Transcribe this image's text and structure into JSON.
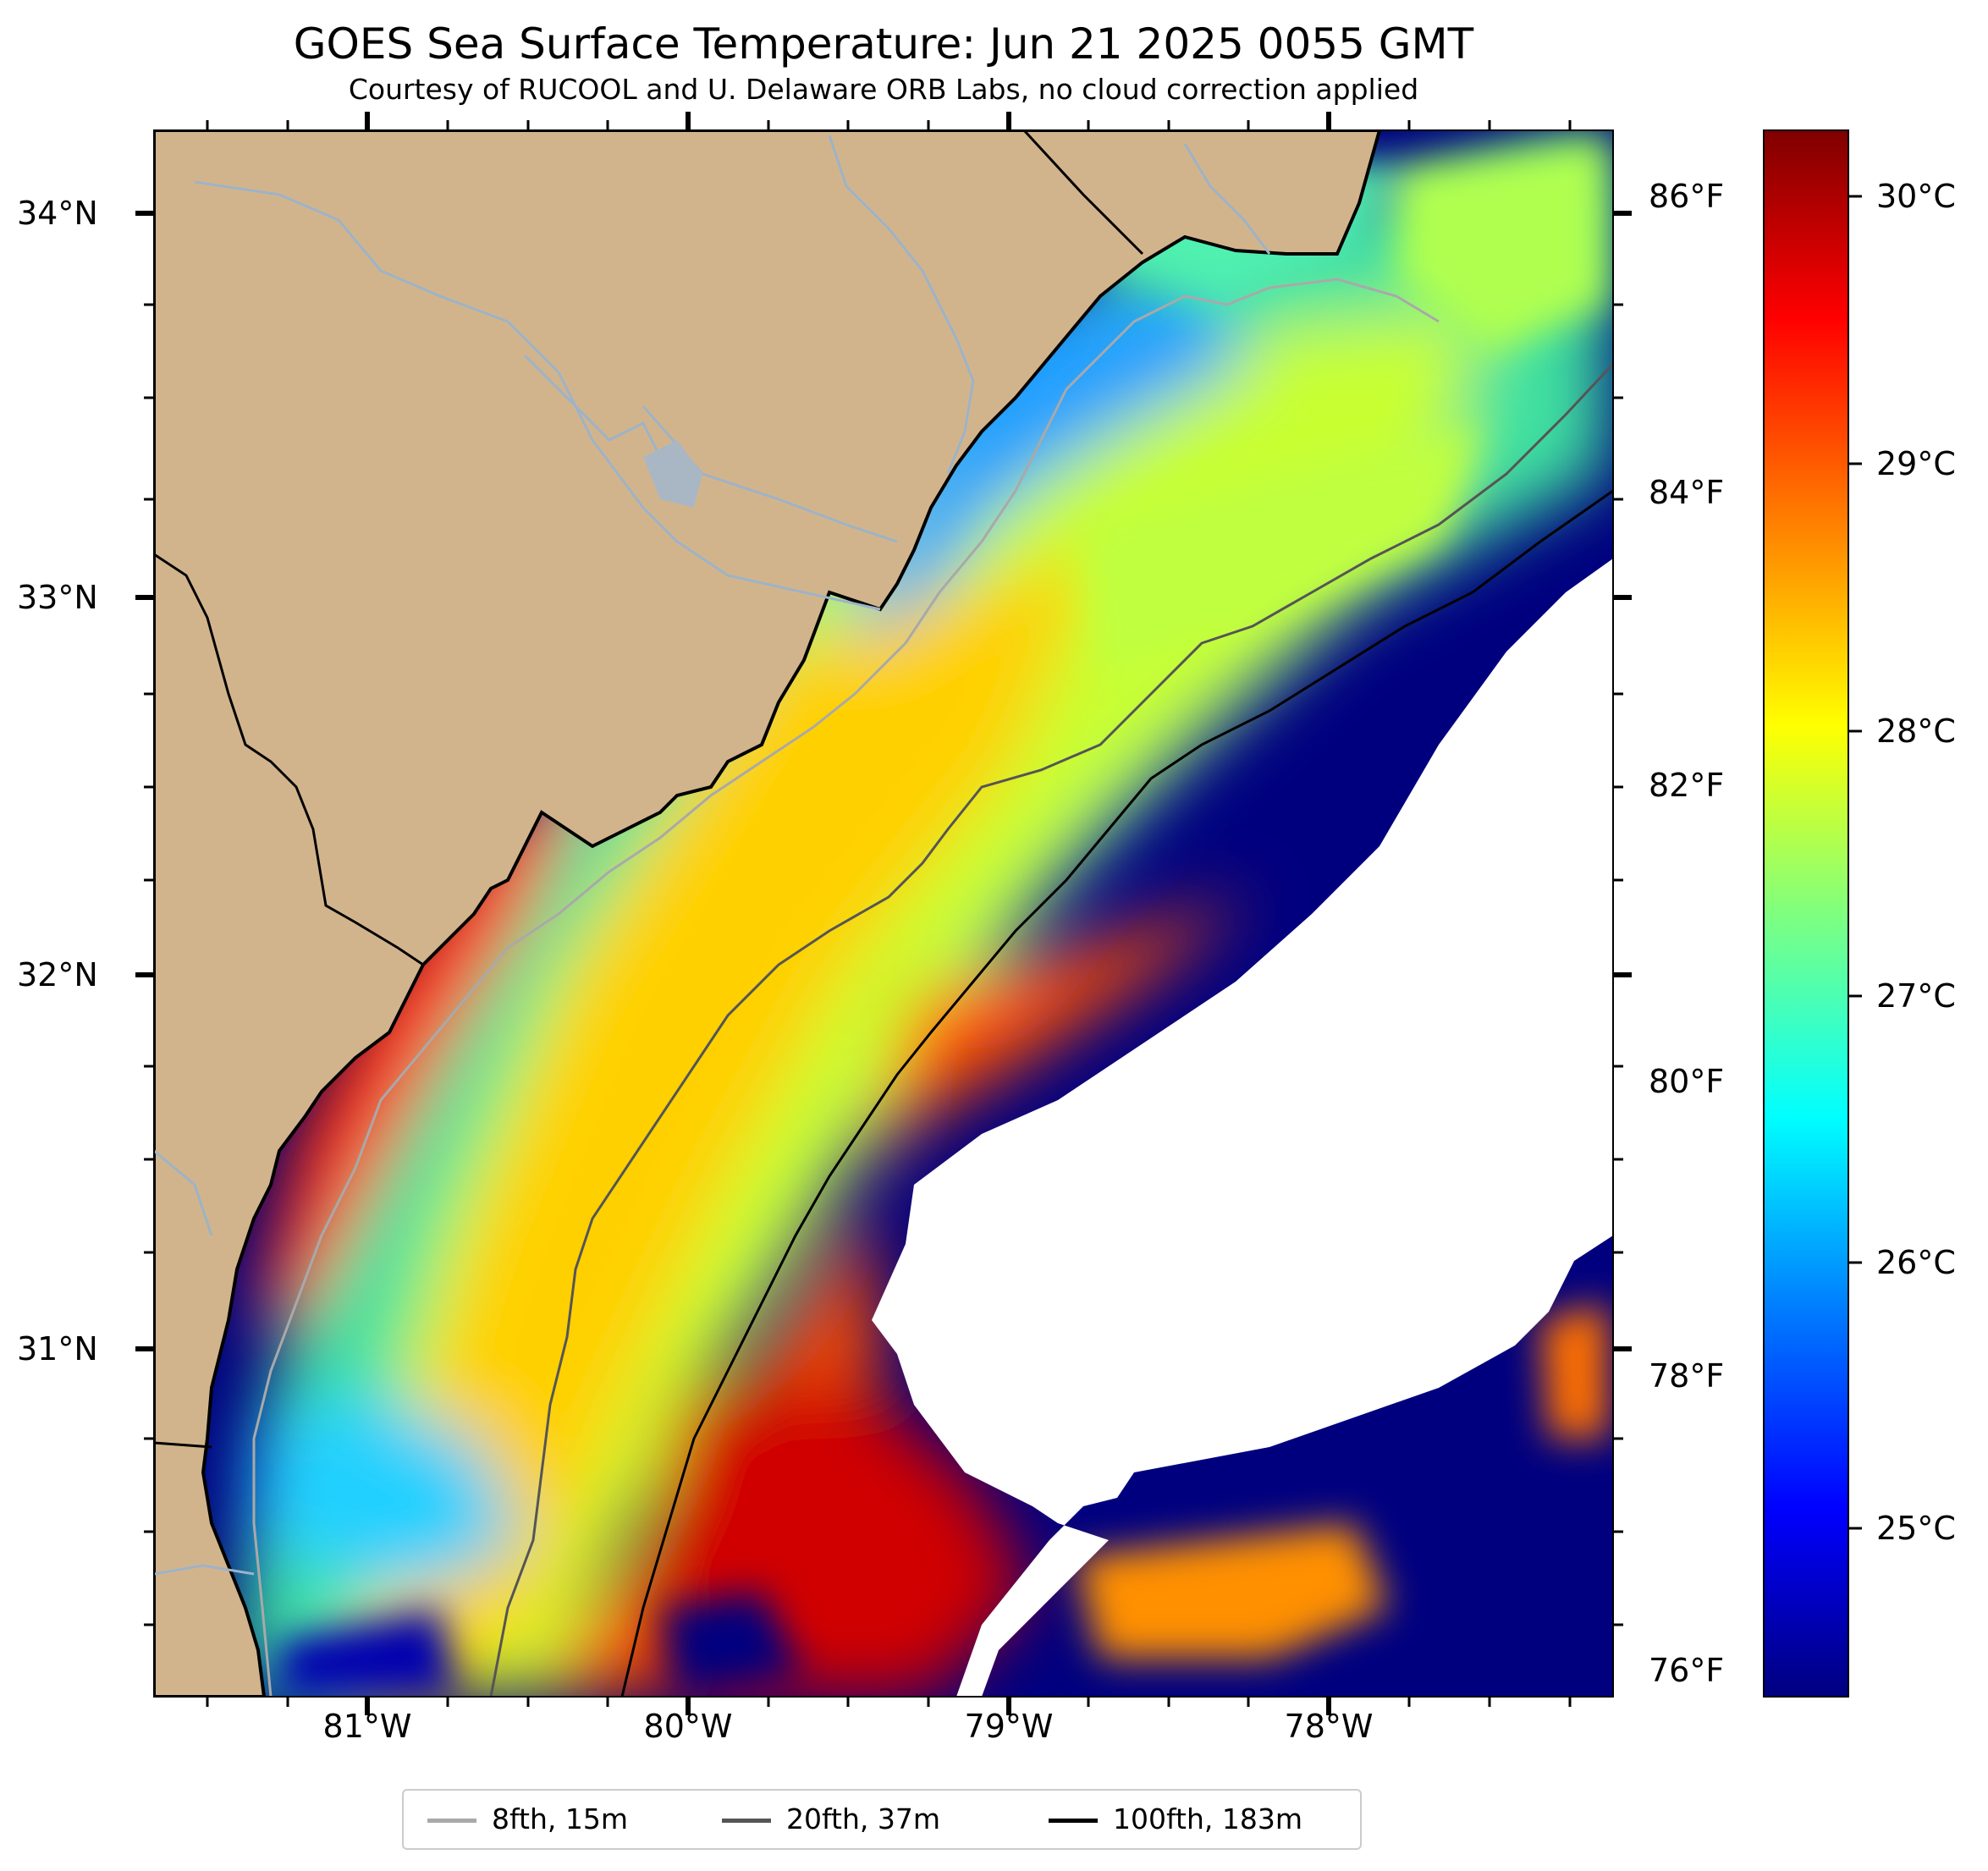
{
  "title": "GOES Sea Surface Temperature: Jun 21 2025 0055 GMT",
  "subtitle": "Courtesy of RUCOOL and U. Delaware ORB Labs, no cloud correction applied",
  "map": {
    "lat_labels": [
      "34°N",
      "33°N",
      "32°N",
      "31°N"
    ],
    "lon_labels": [
      "81°W",
      "80°W",
      "79°W",
      "78°W"
    ],
    "right_axis_labels": [
      "86°F",
      "84°F",
      "82°F",
      "80°F",
      "78°F",
      "76°F"
    ],
    "land_color": "#d2b48c",
    "no_data_color": "#ffffff",
    "cold_color": "#00007f"
  },
  "colorbar": {
    "labels": [
      "30°C",
      "29°C",
      "28°C",
      "27°C",
      "26°C",
      "25°C"
    ],
    "colormap": "jet",
    "colors": [
      "#7f0000",
      "#ff0000",
      "#ff7f00",
      "#ffff00",
      "#7fff7f",
      "#00ffff",
      "#007fff",
      "#0000ff",
      "#00007f"
    ]
  },
  "legend": {
    "items": [
      {
        "label": "8fth, 15m",
        "color": "#a9a9a9"
      },
      {
        "label": "20fth, 37m",
        "color": "#555555"
      },
      {
        "label": "100fth, 183m",
        "color": "#000000"
      }
    ]
  }
}
